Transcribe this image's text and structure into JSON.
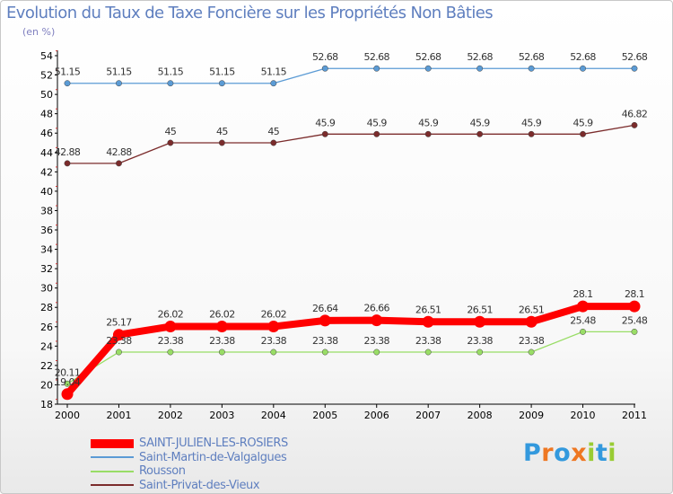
{
  "chart_data": {
    "type": "line",
    "title": "Evolution du Taux de Taxe Foncière sur les Propriétés Non Bâties",
    "ylabel": "(en %)",
    "xlabel": "",
    "x": [
      "2000",
      "2001",
      "2002",
      "2003",
      "2004",
      "2005",
      "2006",
      "2007",
      "2008",
      "2009",
      "2010",
      "2011"
    ],
    "ylim": [
      18,
      54
    ],
    "yticks": [
      18,
      20,
      22,
      24,
      26,
      28,
      30,
      32,
      34,
      36,
      38,
      40,
      42,
      44,
      46,
      48,
      50,
      52,
      54
    ],
    "grid": false,
    "legend_position": "bottom-left",
    "series": [
      {
        "name": "SAINT-JULIEN-LES-ROSIERS",
        "color": "#ff0000",
        "emphasis": true,
        "values": [
          19.04,
          25.17,
          26.02,
          26.02,
          26.02,
          26.64,
          26.66,
          26.51,
          26.51,
          26.51,
          28.1,
          28.1
        ],
        "labels": [
          "19.04",
          "25.17",
          "26.02",
          "26.02",
          "26.02",
          "26.64",
          "26.66",
          "26.51",
          "26.51",
          "26.51",
          "28.1",
          "28.1"
        ]
      },
      {
        "name": "Saint-Martin-de-Valgalgues",
        "color": "#5b9bd5",
        "emphasis": false,
        "values": [
          51.15,
          51.15,
          51.15,
          51.15,
          51.15,
          52.68,
          52.68,
          52.68,
          52.68,
          52.68,
          52.68,
          52.68
        ],
        "labels": [
          "51.15",
          "51.15",
          "51.15",
          "51.15",
          "51.15",
          "52.68",
          "52.68",
          "52.68",
          "52.68",
          "52.68",
          "52.68",
          "52.68"
        ]
      },
      {
        "name": "Rousson",
        "color": "#99dd66",
        "emphasis": false,
        "values": [
          20.11,
          23.38,
          23.38,
          23.38,
          23.38,
          23.38,
          23.38,
          23.38,
          23.38,
          23.38,
          25.48,
          25.48
        ],
        "labels": [
          "20.11",
          "23.38",
          "23.38",
          "23.38",
          "23.38",
          "23.38",
          "23.38",
          "23.38",
          "23.38",
          "23.38",
          "25.48",
          "25.48"
        ]
      },
      {
        "name": "Saint-Privat-des-Vieux",
        "color": "#7b2c2c",
        "emphasis": false,
        "values": [
          42.88,
          42.88,
          45,
          45,
          45,
          45.9,
          45.9,
          45.9,
          45.9,
          45.9,
          45.9,
          46.82
        ],
        "labels": [
          "42.88",
          "42.88",
          "45",
          "45",
          "45",
          "45.9",
          "45.9",
          "45.9",
          "45.9",
          "45.9",
          "45.9",
          "46.82"
        ]
      }
    ]
  },
  "logo": {
    "text": "Proxiti",
    "letter_colors": [
      "#3399dd",
      "#ee7722",
      "#3399dd",
      "#ee7722",
      "#99cc33",
      "#3399dd",
      "#99cc33"
    ]
  }
}
